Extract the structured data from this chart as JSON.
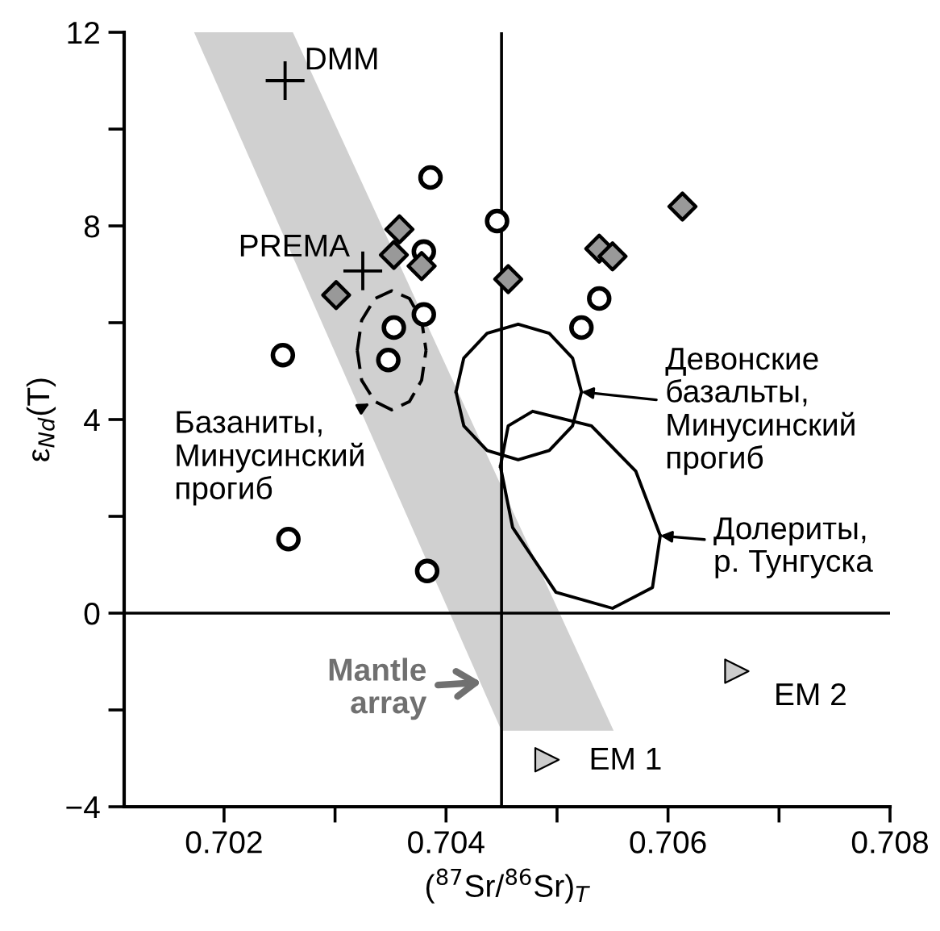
{
  "chart_data": {
    "type": "scatter",
    "xlabel": "($^{87}$Sr/$^{86}$Sr)$_{T}$",
    "ylabel": "ε$_{Nd}$(T)",
    "xlim": [
      0.7011,
      0.708
    ],
    "ylim": [
      -4,
      12
    ],
    "xticks": [
      {
        "value": 0.702,
        "label": "0.702"
      },
      {
        "value": 0.703,
        "label": null
      },
      {
        "value": 0.704,
        "label": "0.704"
      },
      {
        "value": 0.705,
        "label": null
      },
      {
        "value": 0.706,
        "label": "0.706"
      },
      {
        "value": 0.707,
        "label": null
      },
      {
        "value": 0.708,
        "label": "0.708"
      }
    ],
    "yticks": [
      {
        "value": -4,
        "label": "−4"
      },
      {
        "value": -2,
        "label": null
      },
      0,
      {
        "value": 2,
        "label": null
      },
      4,
      {
        "value": 6,
        "label": null
      },
      8,
      {
        "value": 10,
        "label": null
      },
      12
    ],
    "grid": false,
    "ref_lines": [
      {
        "axis": "x",
        "value": 0.7045,
        "color": "#000000"
      },
      {
        "axis": "y",
        "value": 0,
        "color": "#000000"
      }
    ],
    "series": [
      {
        "type": "area",
        "color": "#d0d0d0",
        "x": [
          0.70173,
          0.70262,
          0.70551,
          0.7045,
          0.70173
        ],
        "values": [
          12,
          12,
          -2.43,
          -2.43,
          12
        ]
      },
      {
        "type": "line",
        "color": "#000000",
        "line_style": "dashed",
        "marker": "none",
        "x": [
          0.7032,
          0.70324,
          0.70336,
          0.70351,
          0.70367,
          0.70378,
          0.70382,
          null,
          0.7032,
          0.70324,
          0.70336,
          0.70351,
          0.70367,
          0.70378,
          0.70382
        ],
        "values": [
          5.43,
          6.05,
          6.5,
          6.66,
          6.5,
          6.05,
          5.43,
          null,
          5.43,
          4.81,
          4.37,
          4.2,
          4.37,
          4.81,
          5.43
        ]
      },
      {
        "type": "line",
        "color": "#000000",
        "line_style": "solid",
        "marker": "none",
        "x": [
          0.70409,
          0.70416,
          0.70437,
          0.70465,
          0.70493,
          0.70514,
          0.70522,
          null,
          0.70409,
          0.70416,
          0.70437,
          0.70465,
          0.70493,
          0.70514,
          0.70522
        ],
        "values": [
          4.57,
          5.27,
          5.78,
          5.97,
          5.78,
          5.27,
          4.57,
          null,
          4.57,
          3.87,
          3.36,
          3.17,
          3.36,
          3.87,
          4.57
        ]
      },
      {
        "type": "line",
        "color": "#000000",
        "line_style": "solid",
        "marker": "none",
        "x": [
          0.70449,
          0.70456,
          0.70478,
          0.70531,
          0.70571,
          0.70593,
          null,
          0.70449,
          0.7046,
          0.70499,
          0.7055,
          0.70586,
          0.70593
        ],
        "values": [
          3.03,
          3.87,
          4.17,
          3.87,
          2.93,
          1.6,
          null,
          3.03,
          1.77,
          0.43,
          0.1,
          0.53,
          1.6
        ]
      },
      {
        "color": "#ffffff",
        "marker": "circle",
        "x": [
          0.70386,
          0.70446,
          0.7038,
          0.7038,
          0.70353,
          0.70538,
          0.70522,
          0.70348,
          0.70253,
          0.70258,
          0.70383
        ],
        "values": [
          9.0,
          8.1,
          7.47,
          6.17,
          5.9,
          6.5,
          5.9,
          5.23,
          5.33,
          1.53,
          0.87
        ]
      },
      {
        "color": "#999999",
        "marker": "diamond",
        "x": [
          0.70358,
          0.70353,
          0.70378,
          0.70301,
          0.70456,
          0.70613,
          0.70538,
          0.7055
        ],
        "values": [
          7.93,
          7.4,
          7.17,
          6.57,
          6.9,
          8.4,
          7.53,
          7.37
        ]
      },
      {
        "color": "#000000",
        "marker": "cross",
        "x": [
          0.70255,
          0.70325
        ],
        "values": [
          11.0,
          7.07
        ]
      },
      {
        "color": "#cccccc",
        "marker": "triangle",
        "x": [
          0.70491,
          0.70662
        ],
        "values": [
          -3.03,
          -1.2
        ]
      }
    ],
    "annotations": [
      {
        "text": "DMM",
        "x": 0.70255,
        "y": 11.0
      },
      {
        "text": "PREMA",
        "x": 0.70325,
        "y": 7.07
      },
      {
        "text": "Базаниты,\nМинусинский\nпрогиб",
        "x": 0.70331,
        "y": 4.33
      },
      {
        "text": "Девонские\nбазальты,\nМинусинский\nпрогиб",
        "x": 0.70522,
        "y": 4.57
      },
      {
        "text": "Долериты,\nр. Тунгуска",
        "x": 0.70593,
        "y": 1.6
      },
      {
        "text": "Mantle\narray",
        "x": 0.70432,
        "y": -1.43
      },
      {
        "text": "EM 1",
        "x": 0.70491,
        "y": -3.03
      },
      {
        "text": "EM 2",
        "x": 0.70662,
        "y": -1.2
      }
    ]
  }
}
